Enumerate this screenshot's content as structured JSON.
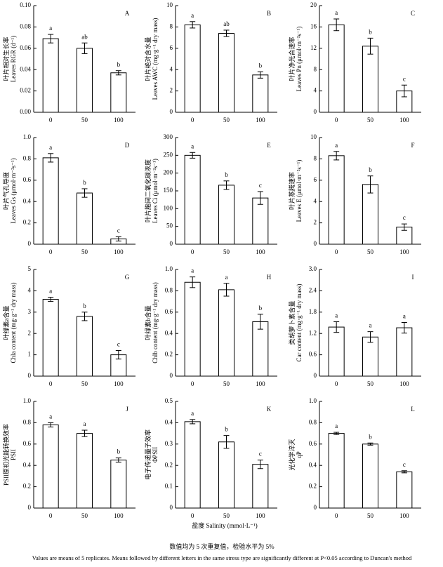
{
  "chart_data": [
    {
      "type": "bar",
      "panel": "A",
      "ylabel_cn": "叶片相对生长率",
      "ylabel": "Leaves RGR (d⁻¹)",
      "categories": [
        "0",
        "50",
        "100"
      ],
      "values": [
        0.069,
        0.06,
        0.037
      ],
      "errors": [
        0.004,
        0.005,
        0.002
      ],
      "letters": [
        "a",
        "ab",
        "b"
      ],
      "ylim": [
        0,
        0.1
      ],
      "yticks": [
        {
          "value": 0,
          "label": "0.00"
        },
        0.02,
        0.04,
        0.06,
        0.08,
        {
          "value": 0.1,
          "label": "0.10"
        }
      ]
    },
    {
      "type": "bar",
      "panel": "B",
      "ylabel_cn": "叶片绝对含水量",
      "ylabel": "Leaves AWC (mg·g⁻¹ dry mass)",
      "categories": [
        "0",
        "50",
        "100"
      ],
      "values": [
        8.2,
        7.4,
        3.5
      ],
      "errors": [
        0.3,
        0.3,
        0.3
      ],
      "letters": [
        "a",
        "ab",
        "b"
      ],
      "ylim": [
        0,
        10
      ],
      "yticks": [
        0,
        2,
        4,
        6,
        8,
        10
      ]
    },
    {
      "type": "bar",
      "panel": "C",
      "ylabel_cn": "叶片净光合速率",
      "ylabel": "Leaves Pn (μmol·m⁻²s⁻¹)",
      "categories": [
        "0",
        "50",
        "100"
      ],
      "values": [
        16.4,
        12.4,
        4.0
      ],
      "errors": [
        1.1,
        1.5,
        1.1
      ],
      "letters": [
        "a",
        "b",
        "c"
      ],
      "ylim": [
        0,
        20
      ],
      "yticks": [
        0,
        4,
        8,
        12,
        16,
        20
      ]
    },
    {
      "type": "bar",
      "panel": "D",
      "ylabel_cn": "叶片气孔导度",
      "ylabel": "Leaves Gs (μmol·m⁻²s⁻¹)",
      "categories": [
        "0",
        "50",
        "100"
      ],
      "values": [
        0.81,
        0.48,
        0.05
      ],
      "errors": [
        0.04,
        0.04,
        0.02
      ],
      "letters": [
        "a",
        "b",
        "c"
      ],
      "ylim": [
        0,
        1
      ],
      "yticks": [
        0,
        0.2,
        0.4,
        0.6,
        0.8,
        {
          "value": 1,
          "label": "1.0"
        }
      ]
    },
    {
      "type": "bar",
      "panel": "E",
      "ylabel_cn": "叶片胞间二氧化碳浓度",
      "ylabel": "Leaves Ci (μmol·m⁻²s⁻¹)",
      "categories": [
        "0",
        "50",
        "100"
      ],
      "values": [
        250,
        166,
        130
      ],
      "errors": [
        8,
        12,
        18
      ],
      "letters": [
        "a",
        "b",
        "c"
      ],
      "ylim": [
        0,
        300
      ],
      "yticks": [
        0,
        50,
        100,
        150,
        200,
        250,
        300
      ]
    },
    {
      "type": "bar",
      "panel": "F",
      "ylabel_cn": "叶片蒸腾速率",
      "ylabel": "Leaves E (μmol·m⁻²s⁻¹)",
      "categories": [
        "0",
        "50",
        "100"
      ],
      "values": [
        8.3,
        5.6,
        1.6
      ],
      "errors": [
        0.4,
        0.8,
        0.3
      ],
      "letters": [
        "a",
        "b",
        "c"
      ],
      "ylim": [
        0,
        10
      ],
      "yticks": [
        0,
        2,
        4,
        6,
        8,
        10
      ]
    },
    {
      "type": "bar",
      "panel": "G",
      "ylabel_cn": "叶绿素a含量",
      "ylabel": "Chla content (mg·g⁻¹ dry mass)",
      "categories": [
        "0",
        "50",
        "100"
      ],
      "values": [
        3.6,
        2.8,
        1.0
      ],
      "errors": [
        0.1,
        0.2,
        0.2
      ],
      "letters": [
        "a",
        "b",
        "c"
      ],
      "ylim": [
        0,
        5
      ],
      "yticks": [
        0,
        1,
        2,
        3,
        4,
        5
      ]
    },
    {
      "type": "bar",
      "panel": "H",
      "ylabel_cn": "叶绿素b含量",
      "ylabel": "Chlb content (mg·g⁻¹ dry mass)",
      "categories": [
        "0",
        "50",
        "100"
      ],
      "values": [
        0.88,
        0.81,
        0.51
      ],
      "errors": [
        0.05,
        0.06,
        0.07
      ],
      "letters": [
        "a",
        "a",
        "b"
      ],
      "ylim": [
        0,
        1
      ],
      "yticks": [
        0,
        0.2,
        0.4,
        0.6,
        0.8,
        {
          "value": 1,
          "label": "1.0"
        }
      ]
    },
    {
      "type": "bar",
      "panel": "I",
      "ylabel_cn": "类胡萝卜素含量",
      "ylabel": "Car content (mg·g⁻¹ dry mass)",
      "categories": [
        "0",
        "50",
        "100"
      ],
      "values": [
        1.38,
        1.1,
        1.36
      ],
      "errors": [
        0.15,
        0.15,
        0.15
      ],
      "letters": [
        "a",
        "a",
        "a"
      ],
      "ylim": [
        0,
        3
      ],
      "yticks": [
        0,
        0.6,
        1.2,
        1.8,
        2.4,
        {
          "value": 3,
          "label": "3.0"
        }
      ]
    },
    {
      "type": "bar",
      "panel": "J",
      "ylabel_cn": "PSII原初光能转换效率",
      "ylabel": "PSII",
      "categories": [
        "0",
        "50",
        "100"
      ],
      "values": [
        0.78,
        0.7,
        0.45
      ],
      "errors": [
        0.02,
        0.03,
        0.02
      ],
      "letters": [
        "a",
        "a",
        "b"
      ],
      "ylim": [
        0,
        1
      ],
      "yticks": [
        0,
        0.2,
        0.4,
        0.6,
        0.8,
        {
          "value": 1,
          "label": "1.0"
        }
      ]
    },
    {
      "type": "bar",
      "panel": "K",
      "ylabel_cn": "电子传递量子效率",
      "ylabel": "ΦPSII",
      "categories": [
        "0",
        "50",
        "100"
      ],
      "values": [
        0.405,
        0.31,
        0.205
      ],
      "errors": [
        0.01,
        0.03,
        0.02
      ],
      "letters": [
        "a",
        "b",
        "c"
      ],
      "ylim": [
        0,
        0.5
      ],
      "yticks": [
        0,
        0.1,
        0.2,
        0.3,
        0.4,
        0.5
      ]
    },
    {
      "type": "bar",
      "panel": "L",
      "ylabel_cn": "光化学淬灭",
      "ylabel": "qP",
      "categories": [
        "0",
        "50",
        "100"
      ],
      "values": [
        0.7,
        0.6,
        0.34
      ],
      "errors": [
        0.01,
        0.01,
        0.01
      ],
      "letters": [
        "a",
        "b",
        "c"
      ],
      "ylim": [
        0,
        1
      ],
      "yticks": [
        0,
        0.2,
        0.4,
        0.6,
        0.8,
        {
          "value": 1,
          "label": "1.0"
        }
      ]
    }
  ],
  "xlabel": "盐度 Salinity (mmol·L⁻¹)",
  "notes": [
    "数值均为 5 次重复值，检验水平为 5%",
    "Values are means of 5 replicates. Means followed by different letters in the same stress type are significantly different at P<0.05 according to Duncan's method"
  ]
}
